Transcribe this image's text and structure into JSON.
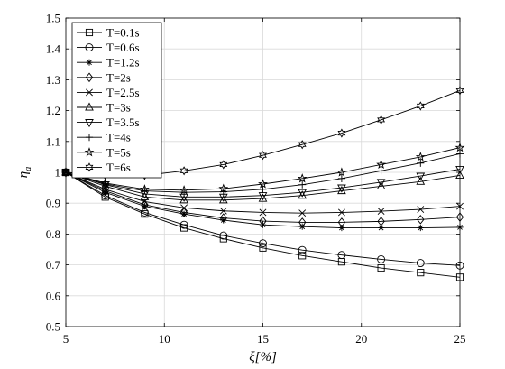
{
  "chart_data": {
    "type": "line",
    "title": "",
    "xlabel": "ξ[%]",
    "ylabel": "η",
    "ylabel_subscript": "a",
    "xlim": [
      5,
      25
    ],
    "ylim": [
      0.5,
      1.5
    ],
    "xticks": [
      5,
      10,
      15,
      20,
      25
    ],
    "yticks": [
      0.5,
      0.6,
      0.7,
      0.8,
      0.9,
      1.0,
      1.1,
      1.2,
      1.3,
      1.4,
      1.5
    ],
    "xtick_labels": [
      "5",
      "10",
      "15",
      "20",
      "25"
    ],
    "ytick_labels": [
      "0.5",
      "0.6",
      "0.7",
      "0.8",
      "0.9",
      "1",
      "1.1",
      "1.2",
      "1.3",
      "1.4",
      "1.5"
    ],
    "grid": true,
    "legend_position": "top-left",
    "x": [
      5,
      7,
      9,
      11,
      13,
      15,
      17,
      19,
      21,
      23,
      25
    ],
    "series": [
      {
        "name": "T=0.1s",
        "marker": "square",
        "values": [
          1.0,
          0.92,
          0.865,
          0.82,
          0.785,
          0.755,
          0.73,
          0.71,
          0.69,
          0.675,
          0.66
        ]
      },
      {
        "name": "T=0.6s",
        "marker": "circle",
        "values": [
          1.0,
          0.925,
          0.87,
          0.83,
          0.795,
          0.77,
          0.748,
          0.732,
          0.718,
          0.706,
          0.698
        ]
      },
      {
        "name": "T=1.2s",
        "marker": "asterisk",
        "values": [
          1.0,
          0.935,
          0.89,
          0.865,
          0.845,
          0.83,
          0.824,
          0.82,
          0.82,
          0.82,
          0.822
        ]
      },
      {
        "name": "T=2s",
        "marker": "diamond",
        "values": [
          1.0,
          0.94,
          0.895,
          0.87,
          0.852,
          0.842,
          0.838,
          0.838,
          0.841,
          0.847,
          0.855
        ]
      },
      {
        "name": "T=2.5s",
        "marker": "x",
        "values": [
          1.0,
          0.945,
          0.905,
          0.885,
          0.875,
          0.87,
          0.868,
          0.87,
          0.874,
          0.88,
          0.89
        ]
      },
      {
        "name": "T=3s",
        "marker": "triangle-up",
        "values": [
          1.0,
          0.955,
          0.92,
          0.91,
          0.91,
          0.915,
          0.925,
          0.94,
          0.955,
          0.97,
          0.99
        ]
      },
      {
        "name": "T=3.5s",
        "marker": "triangle-down",
        "values": [
          1.0,
          0.96,
          0.93,
          0.92,
          0.92,
          0.925,
          0.935,
          0.95,
          0.968,
          0.988,
          1.01
        ]
      },
      {
        "name": "T=4s",
        "marker": "plus",
        "values": [
          1.0,
          0.962,
          0.94,
          0.935,
          0.937,
          0.945,
          0.96,
          0.98,
          1.005,
          1.03,
          1.06
        ]
      },
      {
        "name": "T=5s",
        "marker": "star",
        "values": [
          1.0,
          0.965,
          0.945,
          0.942,
          0.947,
          0.962,
          0.98,
          1.0,
          1.025,
          1.05,
          1.08
        ]
      },
      {
        "name": "T=6s",
        "marker": "hexagram",
        "values": [
          1.0,
          0.99,
          0.99,
          1.005,
          1.025,
          1.055,
          1.09,
          1.127,
          1.17,
          1.215,
          1.265
        ]
      }
    ]
  }
}
